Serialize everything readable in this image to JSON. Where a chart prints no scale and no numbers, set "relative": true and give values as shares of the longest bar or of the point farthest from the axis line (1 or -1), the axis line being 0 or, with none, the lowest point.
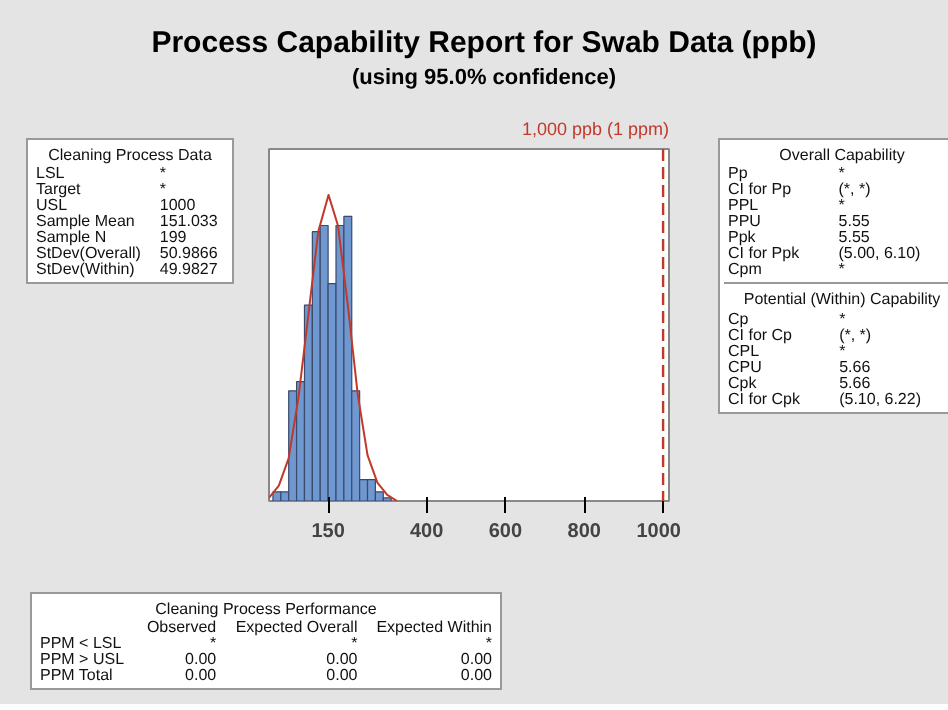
{
  "chart_data": {
    "type": "histogram",
    "title": "Process Capability Report for Swab Data (ppb)",
    "subtitle": "(using 95.0% confidence)",
    "relative": true,
    "bins": [
      10,
      30,
      50,
      70,
      90,
      110,
      130,
      150,
      170,
      190,
      210,
      230,
      250,
      270,
      290,
      310
    ],
    "values": [
      0.03,
      0.03,
      0.36,
      0.39,
      0.64,
      0.88,
      0.9,
      0.71,
      0.9,
      0.93,
      0.36,
      0.07,
      0.07,
      0.03,
      0.01
    ],
    "color": "#6f97d0",
    "series": [
      {
        "type": "line",
        "color": "#c0392b",
        "x": [
          0,
          25,
          50,
          75,
          100,
          125,
          151,
          175,
          200,
          225,
          250,
          275,
          300,
          325
        ],
        "values": [
          0.01,
          0.05,
          0.14,
          0.34,
          0.61,
          0.88,
          1,
          0.9,
          0.64,
          0.35,
          0.15,
          0.06,
          0.02,
          0.0
        ]
      }
    ],
    "xlim": [
      0,
      1015
    ],
    "xticks": [
      150,
      400,
      600,
      800,
      1000
    ],
    "ref_lines": [
      {
        "axis": "x",
        "value": 1000,
        "label": "1,000 ppb (1 ppm)",
        "color": "#c0392b",
        "line_style": "dashed"
      }
    ],
    "annotations": [
      "Cleaning Process Data",
      "LSL\t*",
      "Target\t*",
      "USL\t1000",
      "Sample Mean\t151.033",
      "Sample N\t199",
      "StDev(Overall)\t50.9866",
      "StDev(Within)\t49.9827",
      "Overall Capability",
      "Pp\t*",
      "CI for Pp\t(*, *)",
      "PPL\t*",
      "PPU\t5.55",
      "Ppk\t5.55",
      "CI for Ppk\t(5.00, 6.10)",
      "Cpm\t*",
      "Potential (Within) Capability",
      "Cp\t*",
      "CI for Cp\t(*, *)",
      "CPL\t*",
      "CPU\t5.66",
      "Cpk\t5.66",
      "CI for Cpk\t(5.10, 6.22)",
      "Cleaning Process Performance",
      "\tObserved\tExpected Overall\tExpected Within",
      "PPM < LSL\t*\t*\t*",
      "PPM > USL\t0.00\t0.00\t0.00",
      "PPM Total\t0.00\t0.00\t0.00"
    ]
  }
}
